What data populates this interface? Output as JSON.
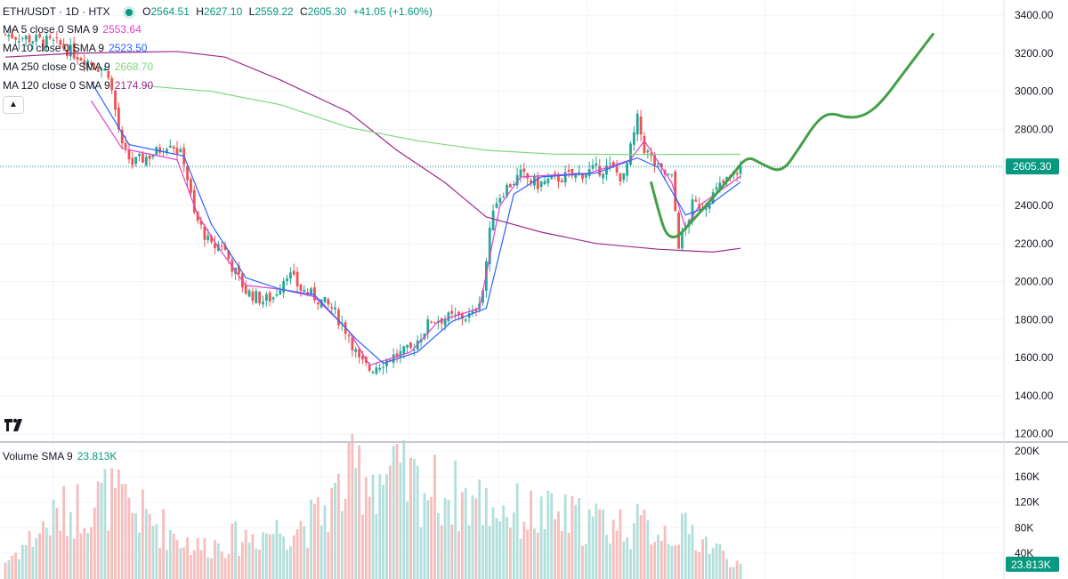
{
  "header": {
    "symbol": "ETH/USDT · 1D · HTX",
    "open_label": "O",
    "open": "2564.51",
    "high_label": "H",
    "high": "2627.10",
    "low_label": "L",
    "low": "2559.22",
    "close_label": "C",
    "close": "2605.30",
    "change": "+41.05 (+1.60%)"
  },
  "indicators": [
    {
      "label": "MA 5 close 0 SMA 9",
      "value": "2553.64",
      "color": "#e040c8"
    },
    {
      "label": "MA 10 close 0 SMA 9",
      "value": "2523.50",
      "color": "#2962ff"
    },
    {
      "label": "MA 250 close 0 SMA 9",
      "value": "2668.70",
      "color": "#7ed67e"
    },
    {
      "label": "MA 120 close 0 SMA 9",
      "value": "2174.90",
      "color": "#9c2a8c"
    }
  ],
  "volume": {
    "label": "Volume SMA 9",
    "value": "23.813K"
  },
  "collapse_icon": "chevron-up-icon",
  "logo": "tradingview-logo",
  "colors": {
    "up": "#26a69a",
    "down": "#ef5350",
    "vol_up": "#b2dfdb",
    "vol_down": "#f7bcbc",
    "grid": "#f0f3fa",
    "forecast": "#43a047",
    "price_tag": "#089981"
  },
  "chart_data": {
    "type": "candlestick",
    "price_axis": {
      "ticks": [
        1200,
        1400,
        1600,
        1800,
        2000,
        2200,
        2400,
        2600,
        2800,
        3000,
        3200,
        3400
      ],
      "tick_labels": [
        "1200.00",
        "1400.00",
        "1600.00",
        "1800.00",
        "2000.00",
        "2200.00",
        "2400.00",
        "2600.00",
        "2800.00",
        "3000.00",
        "3200.00",
        "3400.00"
      ],
      "range": [
        1180,
        3480
      ]
    },
    "volume_axis": {
      "ticks": [
        40,
        80,
        120,
        160,
        200
      ],
      "tick_labels": [
        "40K",
        "80K",
        "120K",
        "160K",
        "200K"
      ],
      "range": [
        0,
        210
      ]
    },
    "last_price": 2605.3,
    "last_price_label": "2605.30",
    "last_volume_label": "23.813K",
    "close_anchors": [
      [
        0,
        3300
      ],
      [
        15,
        3250
      ],
      [
        30,
        3100
      ],
      [
        34,
        2700
      ],
      [
        37,
        2620
      ],
      [
        44,
        2680
      ],
      [
        48,
        2740
      ],
      [
        52,
        2640
      ],
      [
        55,
        2350
      ],
      [
        60,
        2180
      ],
      [
        63,
        2200
      ],
      [
        66,
        2080
      ],
      [
        70,
        1950
      ],
      [
        75,
        1900
      ],
      [
        78,
        1920
      ],
      [
        82,
        2050
      ],
      [
        86,
        1960
      ],
      [
        90,
        1920
      ],
      [
        95,
        1860
      ],
      [
        100,
        1720
      ],
      [
        103,
        1580
      ],
      [
        106,
        1540
      ],
      [
        112,
        1600
      ],
      [
        118,
        1640
      ],
      [
        124,
        1800
      ],
      [
        130,
        1810
      ],
      [
        136,
        1820
      ],
      [
        139,
        1960
      ],
      [
        142,
        2400
      ],
      [
        145,
        2480
      ],
      [
        150,
        2560
      ],
      [
        155,
        2510
      ],
      [
        160,
        2540
      ],
      [
        166,
        2560
      ],
      [
        170,
        2580
      ],
      [
        176,
        2600
      ],
      [
        180,
        2540
      ],
      [
        184,
        2850
      ],
      [
        186,
        2700
      ],
      [
        190,
        2590
      ],
      [
        194,
        2540
      ],
      [
        196,
        2200
      ],
      [
        198,
        2280
      ],
      [
        200,
        2400
      ],
      [
        204,
        2410
      ],
      [
        208,
        2500
      ],
      [
        212,
        2560
      ],
      [
        214,
        2605.3
      ]
    ],
    "ma_series": [
      {
        "name": "MA 5",
        "values": [
          [
            25,
            2950
          ],
          [
            34,
            2700
          ],
          [
            50,
            2640
          ],
          [
            56,
            2350
          ],
          [
            62,
            2180
          ],
          [
            70,
            1980
          ],
          [
            80,
            1960
          ],
          [
            90,
            1920
          ],
          [
            100,
            1740
          ],
          [
            106,
            1560
          ],
          [
            118,
            1630
          ],
          [
            126,
            1790
          ],
          [
            138,
            1860
          ],
          [
            144,
            2400
          ],
          [
            150,
            2550
          ],
          [
            170,
            2570
          ],
          [
            182,
            2640
          ],
          [
            186,
            2740
          ],
          [
            194,
            2520
          ],
          [
            198,
            2280
          ],
          [
            202,
            2400
          ],
          [
            214,
            2553.64
          ]
        ]
      },
      {
        "name": "MA 10",
        "values": [
          [
            25,
            3050
          ],
          [
            36,
            2720
          ],
          [
            52,
            2660
          ],
          [
            60,
            2300
          ],
          [
            70,
            2020
          ],
          [
            80,
            1960
          ],
          [
            90,
            1930
          ],
          [
            102,
            1700
          ],
          [
            110,
            1570
          ],
          [
            120,
            1630
          ],
          [
            130,
            1790
          ],
          [
            140,
            1860
          ],
          [
            148,
            2460
          ],
          [
            156,
            2550
          ],
          [
            172,
            2570
          ],
          [
            184,
            2650
          ],
          [
            190,
            2600
          ],
          [
            198,
            2350
          ],
          [
            204,
            2390
          ],
          [
            214,
            2523.5
          ]
        ]
      },
      {
        "name": "MA 120",
        "values": [
          [
            0,
            3180
          ],
          [
            20,
            3200
          ],
          [
            50,
            3210
          ],
          [
            64,
            3180
          ],
          [
            80,
            3060
          ],
          [
            100,
            2890
          ],
          [
            114,
            2690
          ],
          [
            128,
            2520
          ],
          [
            140,
            2340
          ],
          [
            156,
            2260
          ],
          [
            172,
            2200
          ],
          [
            190,
            2170
          ],
          [
            206,
            2155
          ],
          [
            214,
            2174.9
          ]
        ]
      },
      {
        "name": "MA 250",
        "values": [
          [
            40,
            3030
          ],
          [
            60,
            3000
          ],
          [
            80,
            2930
          ],
          [
            100,
            2810
          ],
          [
            120,
            2740
          ],
          [
            140,
            2690
          ],
          [
            160,
            2670
          ],
          [
            190,
            2668
          ],
          [
            214,
            2668.7
          ]
        ]
      }
    ],
    "forecast_path": [
      [
        188,
        2520
      ],
      [
        190,
        2380
      ],
      [
        192,
        2260
      ],
      [
        194,
        2230
      ],
      [
        196,
        2240
      ],
      [
        200,
        2320
      ],
      [
        206,
        2440
      ],
      [
        212,
        2570
      ],
      [
        216,
        2660
      ],
      [
        220,
        2620
      ],
      [
        226,
        2570
      ],
      [
        231,
        2700
      ],
      [
        236,
        2840
      ],
      [
        240,
        2890
      ],
      [
        245,
        2860
      ],
      [
        250,
        2870
      ],
      [
        255,
        2940
      ],
      [
        262,
        3110
      ],
      [
        270,
        3300
      ]
    ],
    "volume_values_k": [
      {
        "i": 0,
        "v": 30
      },
      {
        "i": 15,
        "v": 110
      },
      {
        "i": 30,
        "v": 145
      },
      {
        "i": 56,
        "v": 55
      },
      {
        "i": 90,
        "v": 100
      },
      {
        "i": 103,
        "v": 190
      },
      {
        "i": 150,
        "v": 115
      },
      {
        "i": 200,
        "v": 80
      },
      {
        "i": 214,
        "v": 23.813
      }
    ],
    "bar_count": 215
  }
}
